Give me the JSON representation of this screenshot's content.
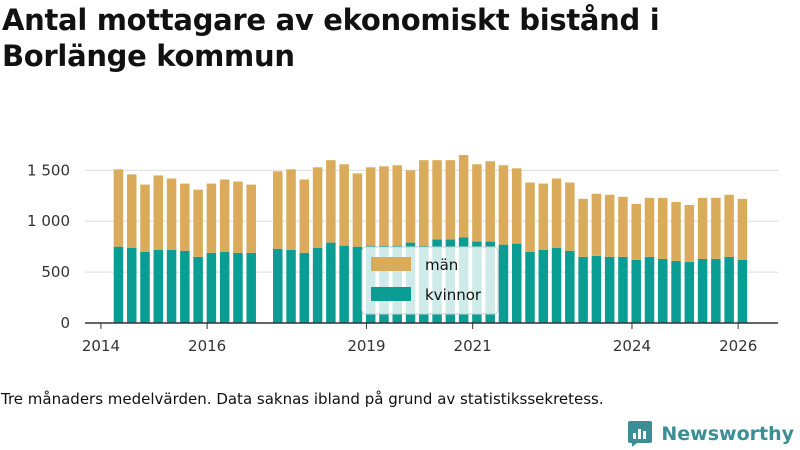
{
  "title": "Antal mottagare av ekonomiskt bistånd i Borlänge kommun",
  "footnote": "Tre månaders medelvärden. Data saknas ibland på grund av statistikssekretess.",
  "brand": {
    "name": "Newsworthy",
    "icon": "newsworthy-logo-icon"
  },
  "colors": {
    "men": "#d9ab5b",
    "women": "#0a9d94",
    "grid": "#dddddd",
    "axis": "#333333"
  },
  "chart_data": {
    "type": "bar",
    "stacked": true,
    "x_unit": "year",
    "xlim": [
      2013.7,
      2026.75
    ],
    "ylim": [
      0,
      1700
    ],
    "yticks": [
      0,
      500,
      1000,
      1500
    ],
    "ytick_labels": [
      "0",
      "500",
      "1 000",
      "1 500"
    ],
    "xticks": [
      2014,
      2016,
      2019,
      2021,
      2024,
      2026
    ],
    "xtick_labels": [
      "2014",
      "2016",
      "2019",
      "2021",
      "2024",
      "2026"
    ],
    "grid": true,
    "legend_placement": "center",
    "x": [
      2014.33,
      2014.58,
      2014.83,
      2015.08,
      2015.33,
      2015.58,
      2015.83,
      2016.08,
      2016.33,
      2016.58,
      2016.83,
      2017.33,
      2017.58,
      2017.83,
      2018.08,
      2018.33,
      2018.58,
      2018.83,
      2019.08,
      2019.33,
      2019.58,
      2019.83,
      2020.08,
      2020.33,
      2020.58,
      2020.83,
      2021.08,
      2021.33,
      2021.58,
      2021.83,
      2022.08,
      2022.33,
      2022.58,
      2022.83,
      2023.08,
      2023.33,
      2023.58,
      2023.83,
      2024.08,
      2024.33,
      2024.58,
      2024.83,
      2025.08,
      2025.33,
      2025.58,
      2025.83,
      2026.08
    ],
    "series": [
      {
        "name": "kvinnor",
        "values": [
          750,
          740,
          700,
          720,
          720,
          710,
          650,
          690,
          700,
          690,
          690,
          730,
          720,
          690,
          740,
          790,
          760,
          750,
          760,
          760,
          760,
          790,
          760,
          820,
          820,
          840,
          800,
          800,
          770,
          780,
          700,
          720,
          740,
          710,
          650,
          660,
          650,
          650,
          620,
          650,
          630,
          610,
          600,
          630,
          630,
          650,
          620
        ]
      },
      {
        "name": "män",
        "values": [
          760,
          720,
          660,
          730,
          700,
          660,
          660,
          680,
          710,
          700,
          670,
          760,
          790,
          720,
          790,
          810,
          800,
          720,
          770,
          780,
          790,
          710,
          840,
          780,
          780,
          810,
          760,
          790,
          780,
          740,
          680,
          650,
          680,
          670,
          570,
          610,
          610,
          590,
          550,
          580,
          600,
          580,
          560,
          600,
          600,
          610,
          600
        ]
      }
    ]
  }
}
